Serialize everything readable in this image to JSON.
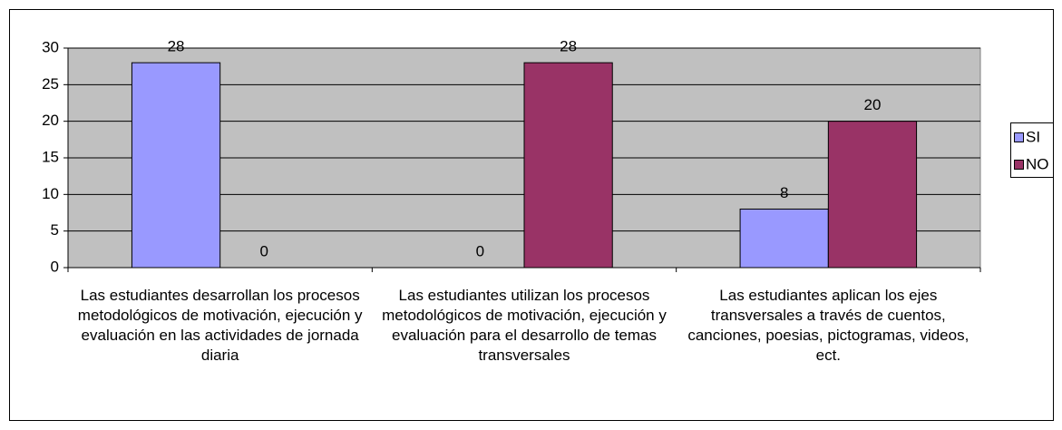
{
  "chart_data": {
    "type": "bar",
    "categories": [
      "Las estudiantes desarrollan los procesos metodológicos de motivación, ejecución y evaluación en las actividades de jornada diaria",
      "Las estudiantes utilizan los procesos metodológicos de motivación, ejecución y evaluación para el desarrollo de temas transversales",
      "Las estudiantes aplican los ejes transversales a través de cuentos, canciones, poesias, pictogramas, videos, ect."
    ],
    "series": [
      {
        "name": "SI",
        "color": "#9999ff",
        "values": [
          28,
          0,
          8
        ]
      },
      {
        "name": "NO",
        "color": "#993366",
        "values": [
          0,
          28,
          20
        ]
      }
    ],
    "ylim": [
      0,
      30
    ],
    "yticks": [
      0,
      5,
      10,
      15,
      20,
      25,
      30
    ],
    "grid": true,
    "legend": "right"
  }
}
